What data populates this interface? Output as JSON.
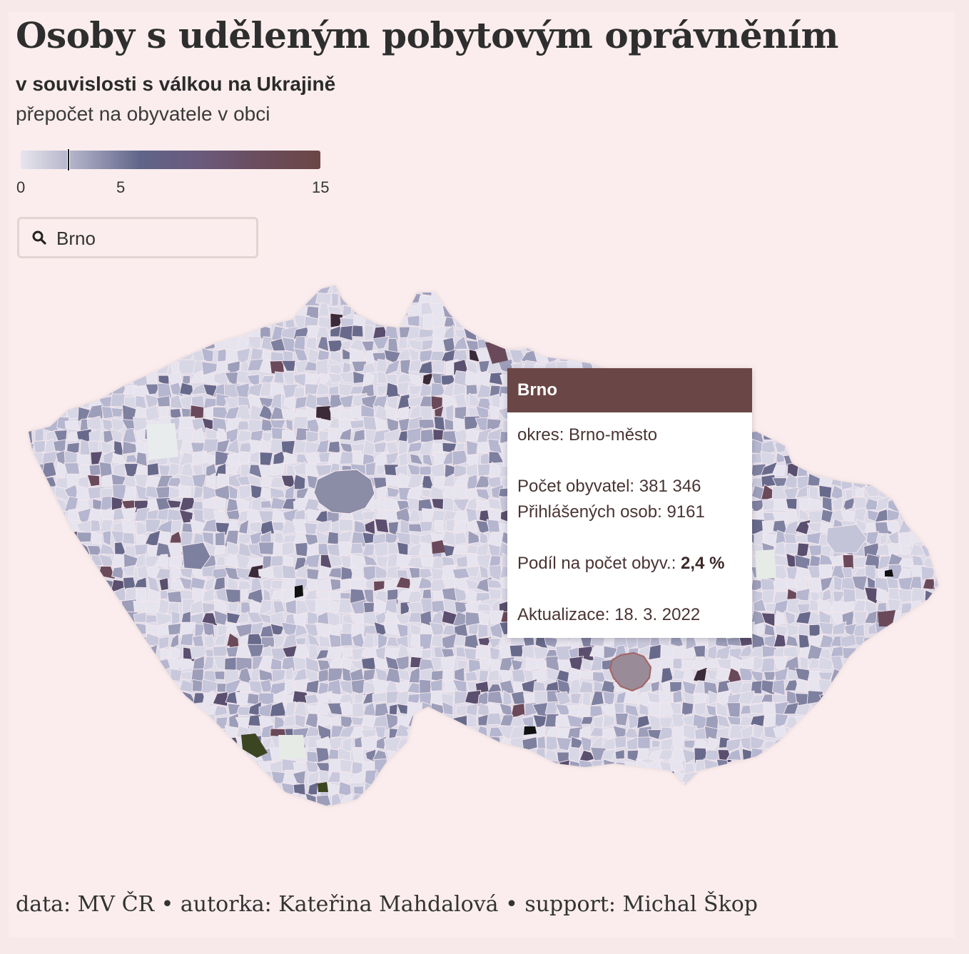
{
  "header": {
    "title": "Osoby s uděleným pobytovým oprávněním",
    "subtitle_bold": "v souvislosti s válkou na Ukrajině",
    "subtitle": "přepočet na obyvatele v obci"
  },
  "legend": {
    "min": 0,
    "max": 15,
    "ticks": [
      "0",
      "5",
      "15"
    ],
    "tick_values": [
      0,
      5,
      15
    ],
    "marker_value": 2.4,
    "colors": [
      "#e7e5ee",
      "#a9aac2",
      "#5f6489",
      "#6b5a7c",
      "#6a4c5c",
      "#6b4646"
    ]
  },
  "search": {
    "value": "Brno",
    "placeholder": ""
  },
  "map": {
    "highlight_color": "#a36868",
    "region_colors": [
      "#e6e4ef",
      "#d8d7e6",
      "#c8c8dc",
      "#b5b6cf",
      "#9c9eba",
      "#7e80a0",
      "#686a8c",
      "#5a4f6e",
      "#6a4a5a",
      "#3a2a3a"
    ],
    "accent_colors": [
      "#3c4522",
      "#111111",
      "#5a3a3a"
    ]
  },
  "tooltip": {
    "name": "Brno",
    "okres": "okres: Brno-město",
    "population": "Počet obyvatel: 381 346",
    "registered": "Přihlášených osob: 9161",
    "share_label": "Podíl na počet obyv.: ",
    "share_value": "2,4 %",
    "updated": "Aktualizace: 18. 3. 2022"
  },
  "footer": {
    "credits": "data: MV ČR • autorka: Kateřina Mahdalová • support: Michal Škop"
  }
}
